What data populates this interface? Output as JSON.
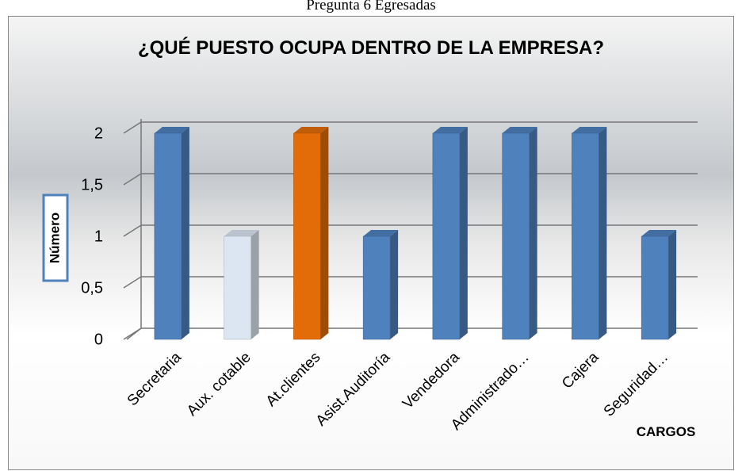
{
  "caption": "Pregunta 6 Egresadas",
  "chart_data": {
    "type": "bar3d",
    "title": "¿QUÉ PUESTO OCUPA DENTRO DE LA EMPRESA?",
    "y_label": "Número",
    "x_label": "CARGOS",
    "categories": [
      "Secretaria",
      "Aux. cotable",
      "At.clientes",
      "Asist.Auditoría",
      "Vendedora",
      "Administrado…",
      "Cajera",
      "Seguridad…"
    ],
    "values": [
      2,
      1,
      2,
      1,
      2,
      2,
      2,
      1
    ],
    "colors": [
      "#4f81bd",
      "#dce6f2",
      "#e36c09",
      "#4f81bd",
      "#4f81bd",
      "#4f81bd",
      "#4f81bd",
      "#4f81bd"
    ],
    "ylim": [
      0,
      2
    ],
    "yticks": [
      0,
      {
        "value": 0.5,
        "label": "0,5"
      },
      1,
      {
        "value": 1.5,
        "label": "1,5"
      },
      2
    ],
    "grid": true
  }
}
